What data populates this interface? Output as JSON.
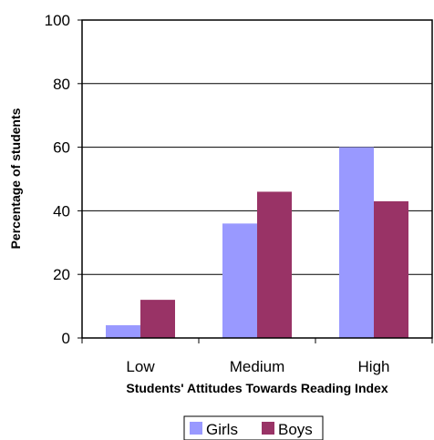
{
  "chart_data": {
    "type": "bar",
    "title": "",
    "xlabel": "Students' Attitudes Towards Reading Index",
    "ylabel": "Percentage of students",
    "categories": [
      "Low",
      "Medium",
      "High"
    ],
    "series": [
      {
        "name": "Girls",
        "values": [
          4,
          36,
          60
        ],
        "color": "#9999ff"
      },
      {
        "name": "Boys",
        "values": [
          12,
          46,
          43
        ],
        "color": "#993366"
      }
    ],
    "ylim": [
      0,
      100
    ],
    "yticks": [
      0,
      20,
      40,
      60,
      80,
      100
    ],
    "grid": true,
    "legend": "bottom"
  }
}
